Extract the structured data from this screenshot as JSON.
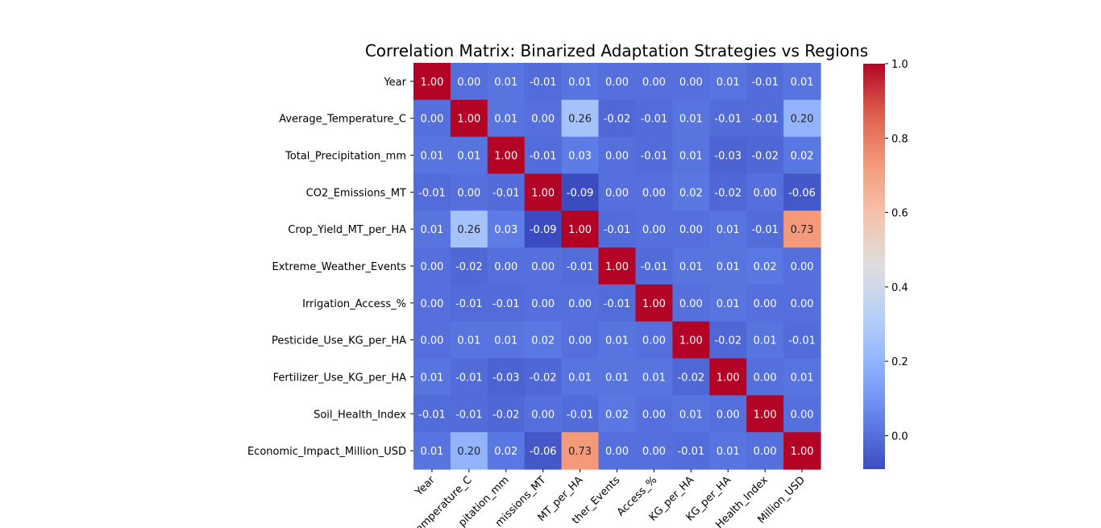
{
  "chart_data": {
    "type": "heatmap",
    "title": "Correlation Matrix: Binarized Adaptation Strategies vs Regions",
    "xlabel": "",
    "ylabel": "",
    "colormap": "coolwarm",
    "color_range": [
      -0.09,
      1.0
    ],
    "colorbar_ticks": [
      "0.0",
      "0.2",
      "0.4",
      "0.6",
      "0.8",
      "1.0"
    ],
    "colorbar_tick_values": [
      0.0,
      0.2,
      0.4,
      0.6,
      0.8,
      1.0
    ],
    "y_labels": [
      "Year",
      "Average_Temperature_C",
      "Total_Precipitation_mm",
      "CO2_Emissions_MT",
      "Crop_Yield_MT_per_HA",
      "Extreme_Weather_Events",
      "Irrigation_Access_%",
      "Pesticide_Use_KG_per_HA",
      "Fertilizer_Use_KG_per_HA",
      "Soil_Health_Index",
      "Economic_Impact_Million_USD"
    ],
    "x_labels": [
      "Year",
      "emperature_C",
      "pitation_mm",
      "missions_MT",
      "MT_per_HA",
      "ther_Events",
      "Access_%",
      "KG_per_HA",
      "KG_per_HA",
      "Health_Index",
      "Million_USD"
    ],
    "values": [
      [
        1.0,
        -0.0,
        0.01,
        -0.01,
        0.01,
        -0.0,
        0.0,
        -0.0,
        0.01,
        -0.01,
        0.01
      ],
      [
        -0.0,
        1.0,
        0.01,
        -0.0,
        0.26,
        -0.02,
        -0.01,
        0.01,
        -0.01,
        -0.01,
        0.2
      ],
      [
        0.01,
        0.01,
        1.0,
        -0.01,
        0.03,
        0.0,
        -0.01,
        0.01,
        -0.03,
        -0.02,
        0.02
      ],
      [
        -0.01,
        -0.0,
        -0.01,
        1.0,
        -0.09,
        0.0,
        0.0,
        0.02,
        -0.02,
        0.0,
        -0.06
      ],
      [
        0.01,
        0.26,
        0.03,
        -0.09,
        1.0,
        -0.01,
        -0.0,
        -0.0,
        0.01,
        -0.01,
        0.73
      ],
      [
        -0.0,
        -0.02,
        0.0,
        0.0,
        -0.01,
        1.0,
        -0.01,
        0.01,
        0.01,
        0.02,
        -0.0
      ],
      [
        0.0,
        -0.01,
        -0.01,
        0.0,
        -0.0,
        -0.01,
        1.0,
        -0.0,
        0.01,
        0.0,
        0.0
      ],
      [
        -0.0,
        0.01,
        0.01,
        0.02,
        -0.0,
        0.01,
        -0.0,
        1.0,
        -0.02,
        0.01,
        -0.01
      ],
      [
        0.01,
        -0.01,
        -0.03,
        -0.02,
        0.01,
        0.01,
        0.01,
        -0.02,
        1.0,
        -0.0,
        0.01
      ],
      [
        -0.01,
        -0.01,
        -0.02,
        0.0,
        -0.01,
        0.02,
        0.0,
        0.01,
        -0.0,
        1.0,
        -0.0
      ],
      [
        0.01,
        0.2,
        0.02,
        -0.06,
        0.73,
        -0.0,
        0.0,
        -0.01,
        0.01,
        -0.0,
        1.0
      ]
    ],
    "annotation_format": "2f",
    "grid": false,
    "legend": "colorbar-right"
  }
}
